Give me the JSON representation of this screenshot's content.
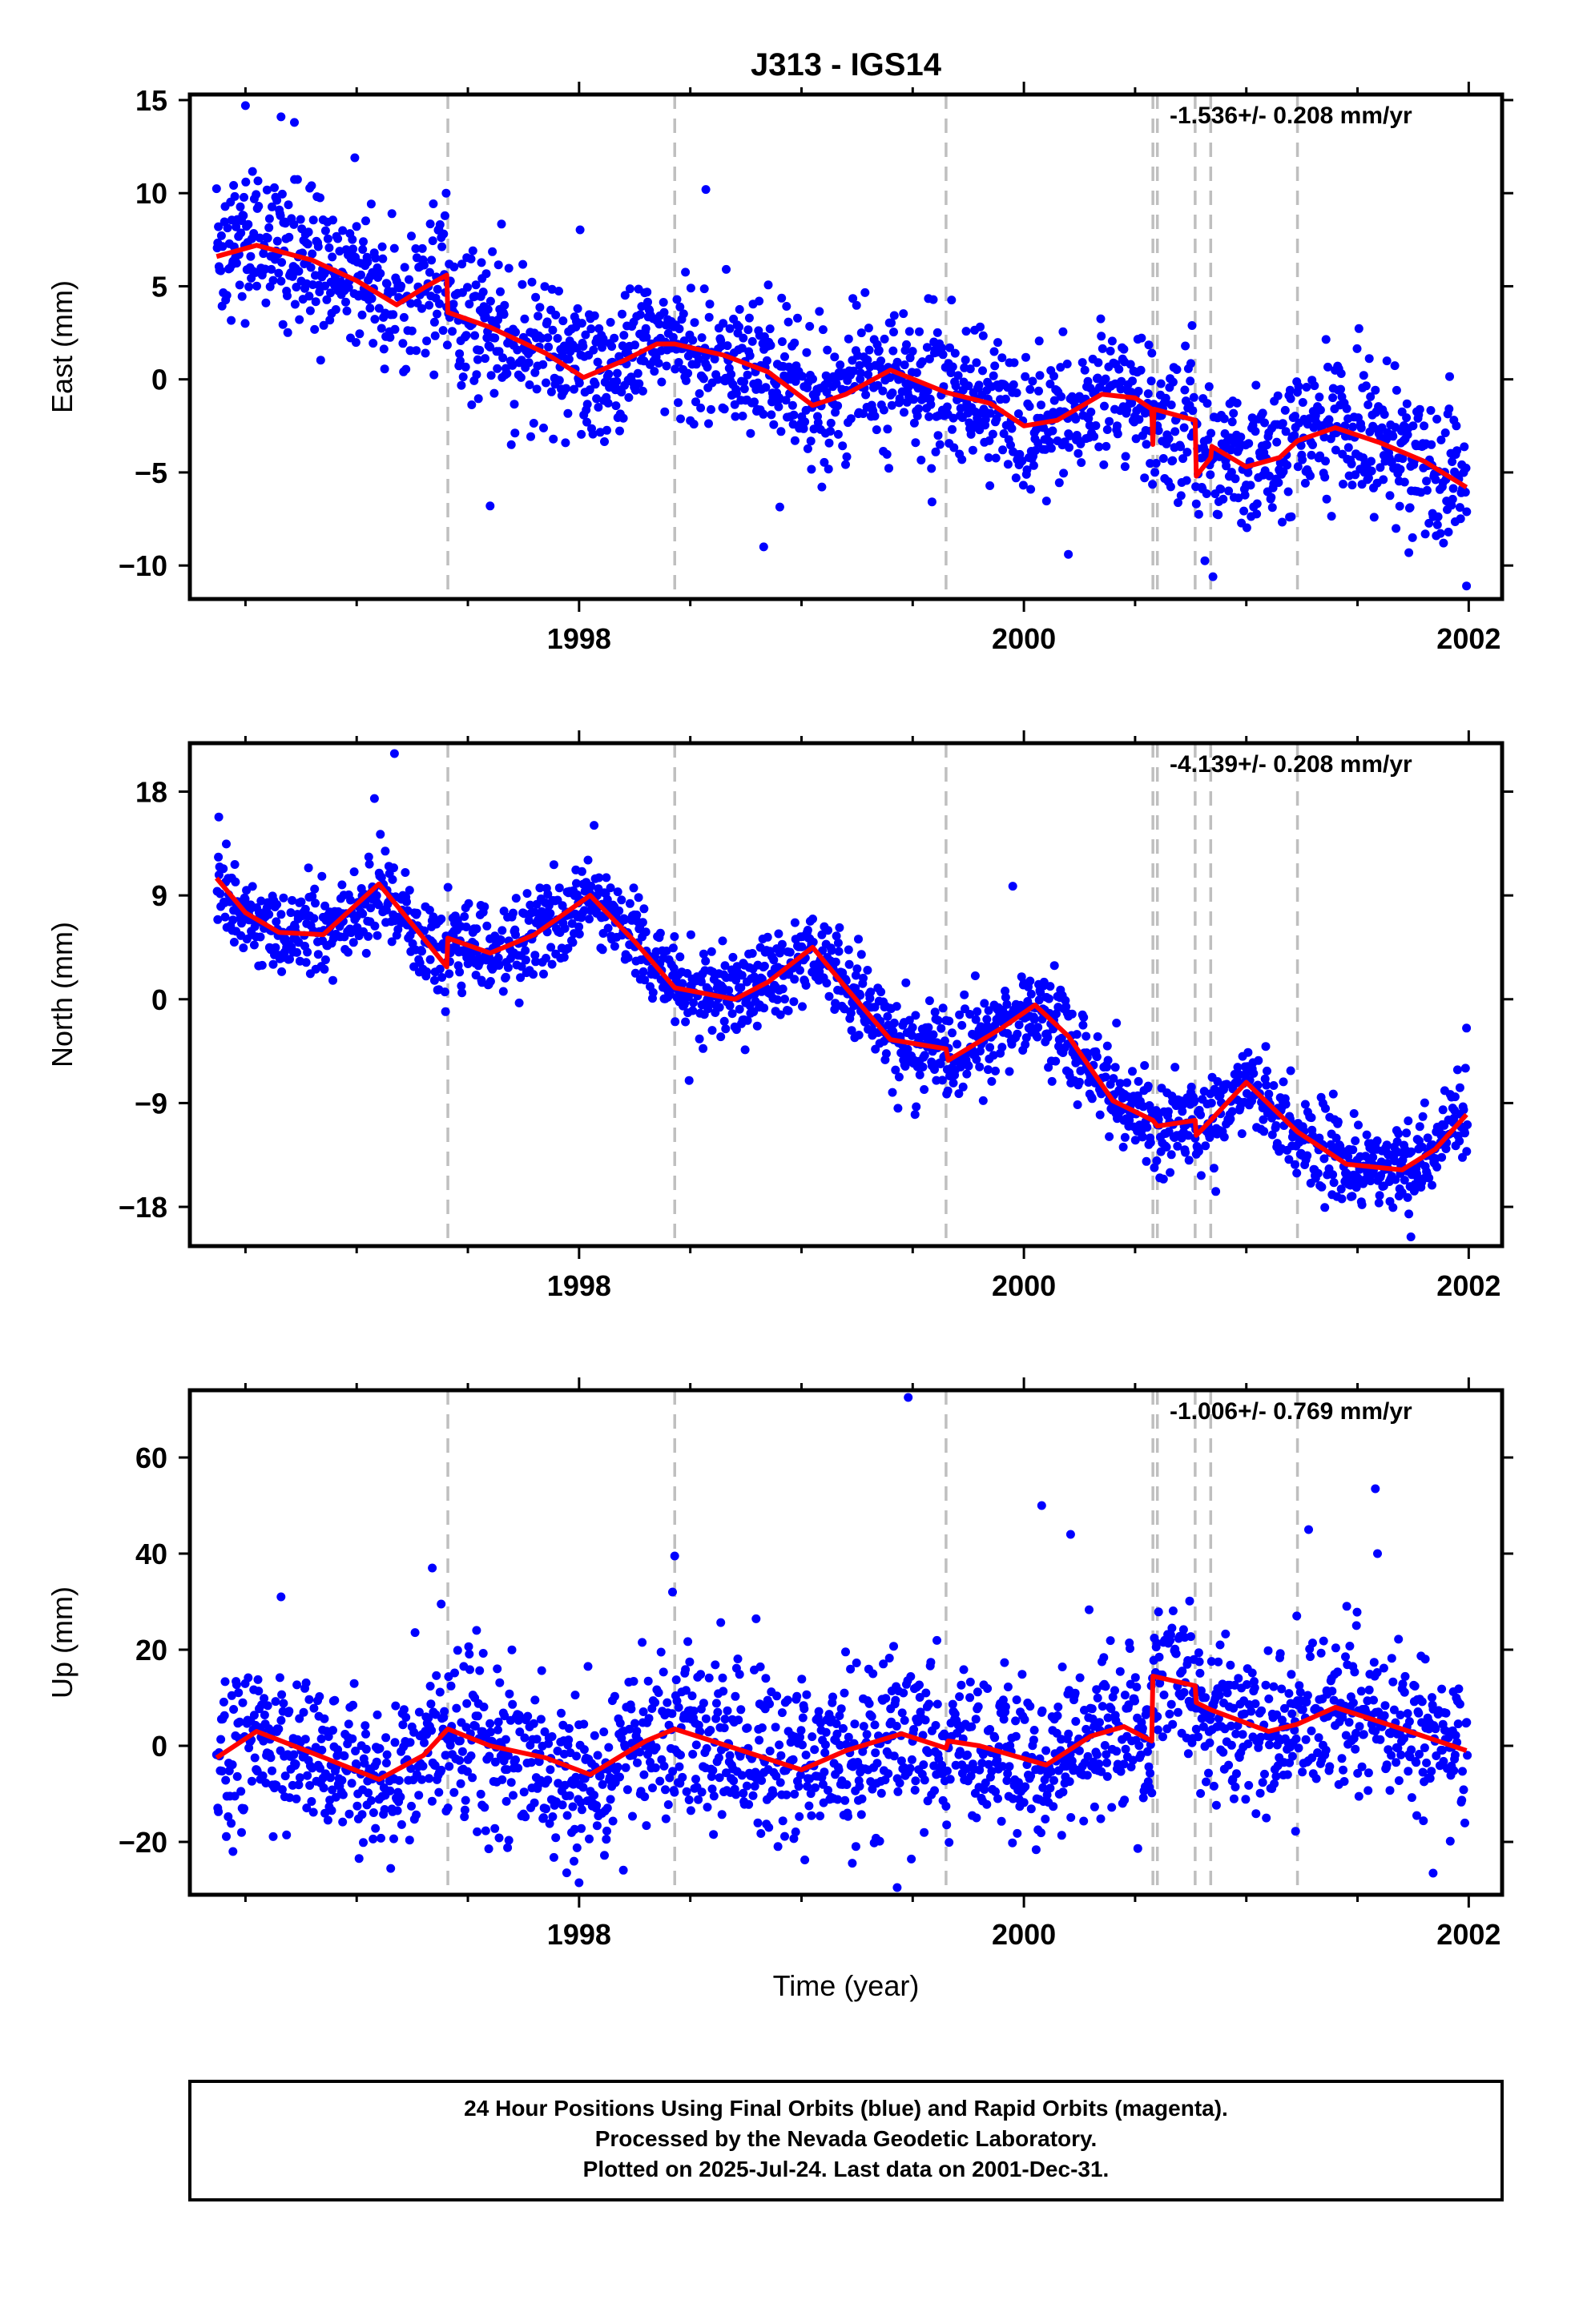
{
  "colors": {
    "points": "#0000ff",
    "fit": "#ff0000",
    "steps": "#bfbfbf",
    "frame": "#000000",
    "background": "#ffffff"
  },
  "chart_data": {
    "type": "scatter",
    "title": "J313 - IGS14",
    "xlabel": "Time (year)",
    "x_ticks": [
      1998,
      2000,
      2002
    ],
    "x_tick_labels": [
      "1998",
      "2000",
      "2002"
    ],
    "xlim": [
      1996.25,
      2002.15
    ],
    "series_style": {
      "points": "blue dots (24 hour positions, final orbits)",
      "fit": "red line (model fit)",
      "steps": "gray dashed vertical lines"
    },
    "step_epochs": [
      1997.41,
      1998.43,
      1999.65,
      2000.58,
      2000.6,
      2000.77,
      2000.84,
      2001.23
    ],
    "panels": [
      {
        "name": "east",
        "ylabel": "East (mm)",
        "ylim": [
          -11.8,
          15.3
        ],
        "y_ticks": [
          15,
          10,
          5,
          0,
          -5,
          -10
        ],
        "y_tick_labels": [
          "15",
          "10",
          "5",
          "0",
          "−5",
          "−10"
        ],
        "rate_text": "-1.536+/- 0.208 mm/yr",
        "trend": [
          {
            "x": 1996.37,
            "y": 6.6
          },
          {
            "x": 1996.55,
            "y": 7.2
          },
          {
            "x": 1996.8,
            "y": 6.4
          },
          {
            "x": 1997.0,
            "y": 5.3
          },
          {
            "x": 1997.18,
            "y": 4.0
          },
          {
            "x": 1997.3,
            "y": 4.9
          },
          {
            "x": 1997.405,
            "y": 5.6
          },
          {
            "x": 1997.41,
            "y": 3.6
          },
          {
            "x": 1997.6,
            "y": 2.8
          },
          {
            "x": 1997.85,
            "y": 1.4
          },
          {
            "x": 1998.02,
            "y": 0.1
          },
          {
            "x": 1998.2,
            "y": 1.0
          },
          {
            "x": 1998.35,
            "y": 1.9
          },
          {
            "x": 1998.43,
            "y": 1.9
          },
          {
            "x": 1998.65,
            "y": 1.3
          },
          {
            "x": 1998.85,
            "y": 0.4
          },
          {
            "x": 1999.05,
            "y": -1.4
          },
          {
            "x": 1999.2,
            "y": -0.8
          },
          {
            "x": 1999.4,
            "y": 0.5
          },
          {
            "x": 1999.65,
            "y": -0.7
          },
          {
            "x": 1999.85,
            "y": -1.3
          },
          {
            "x": 2000.0,
            "y": -2.5
          },
          {
            "x": 2000.15,
            "y": -2.2
          },
          {
            "x": 2000.35,
            "y": -0.8
          },
          {
            "x": 2000.5,
            "y": -1.0
          },
          {
            "x": 2000.575,
            "y": -1.6
          },
          {
            "x": 2000.58,
            "y": -3.5
          },
          {
            "x": 2000.585,
            "y": -1.6
          },
          {
            "x": 2000.77,
            "y": -2.2
          },
          {
            "x": 2000.775,
            "y": -5.2
          },
          {
            "x": 2000.84,
            "y": -4.2
          },
          {
            "x": 2000.845,
            "y": -3.6
          },
          {
            "x": 2001.0,
            "y": -4.7
          },
          {
            "x": 2001.15,
            "y": -4.2
          },
          {
            "x": 2001.23,
            "y": -3.3
          },
          {
            "x": 2001.4,
            "y": -2.6
          },
          {
            "x": 2001.6,
            "y": -3.4
          },
          {
            "x": 2001.8,
            "y": -4.4
          },
          {
            "x": 2001.99,
            "y": -5.8
          }
        ],
        "scatter_sigma": 1.9,
        "outliers": [
          {
            "x": 1996.5,
            "y": 14.7
          },
          {
            "x": 1996.66,
            "y": 14.1
          },
          {
            "x": 1996.72,
            "y": 13.8
          },
          {
            "x": 1998.57,
            "y": 10.2
          },
          {
            "x": 1997.6,
            "y": -6.8
          },
          {
            "x": 1998.83,
            "y": -9.0
          },
          {
            "x": 2000.2,
            "y": -9.4
          },
          {
            "x": 2000.85,
            "y": -10.6
          },
          {
            "x": 2001.99,
            "y": -11.1
          }
        ]
      },
      {
        "name": "north",
        "ylabel": "North (mm)",
        "ylim": [
          -21.4,
          22.2
        ],
        "y_ticks": [
          18,
          9,
          0,
          -9,
          -18
        ],
        "y_tick_labels": [
          "18",
          "9",
          "0",
          "−9",
          "−18"
        ],
        "rate_text": "-4.139+/- 0.208 mm/yr",
        "trend": [
          {
            "x": 1996.37,
            "y": 10.5
          },
          {
            "x": 1996.5,
            "y": 7.5
          },
          {
            "x": 1996.65,
            "y": 5.8
          },
          {
            "x": 1996.85,
            "y": 5.6
          },
          {
            "x": 1997.1,
            "y": 10.0
          },
          {
            "x": 1997.25,
            "y": 6.5
          },
          {
            "x": 1997.405,
            "y": 2.8
          },
          {
            "x": 1997.41,
            "y": 5.3
          },
          {
            "x": 1997.6,
            "y": 4.0
          },
          {
            "x": 1997.8,
            "y": 5.6
          },
          {
            "x": 1998.05,
            "y": 9.0
          },
          {
            "x": 1998.25,
            "y": 5.0
          },
          {
            "x": 1998.43,
            "y": 1.0
          },
          {
            "x": 1998.7,
            "y": 0.0
          },
          {
            "x": 1998.85,
            "y": 1.5
          },
          {
            "x": 1999.05,
            "y": 4.5
          },
          {
            "x": 1999.2,
            "y": 1.0
          },
          {
            "x": 1999.4,
            "y": -3.5
          },
          {
            "x": 1999.65,
            "y": -4.3
          },
          {
            "x": 1999.66,
            "y": -5.3
          },
          {
            "x": 1999.9,
            "y": -2.5
          },
          {
            "x": 2000.05,
            "y": -0.5
          },
          {
            "x": 2000.2,
            "y": -3.2
          },
          {
            "x": 2000.4,
            "y": -8.8
          },
          {
            "x": 2000.58,
            "y": -10.5
          },
          {
            "x": 2000.6,
            "y": -11.0
          },
          {
            "x": 2000.77,
            "y": -10.5
          },
          {
            "x": 2000.775,
            "y": -11.8
          },
          {
            "x": 2000.84,
            "y": -10.5
          },
          {
            "x": 2001.0,
            "y": -7.2
          },
          {
            "x": 2001.23,
            "y": -11.5
          },
          {
            "x": 2001.45,
            "y": -14.3
          },
          {
            "x": 2001.7,
            "y": -14.8
          },
          {
            "x": 2001.85,
            "y": -13.0
          },
          {
            "x": 2001.99,
            "y": -10.0
          }
        ],
        "scatter_sigma": 1.9,
        "outliers": [
          {
            "x": 1997.17,
            "y": 21.3
          },
          {
            "x": 1997.08,
            "y": 17.4
          },
          {
            "x": 1996.38,
            "y": 15.8
          },
          {
            "x": 1999.95,
            "y": 9.8
          },
          {
            "x": 2001.99,
            "y": -2.5
          },
          {
            "x": 2001.74,
            "y": -20.6
          }
        ]
      },
      {
        "name": "up",
        "ylabel": "Up (mm)",
        "ylim": [
          -31,
          74
        ],
        "y_ticks": [
          60,
          40,
          20,
          0,
          -20
        ],
        "y_tick_labels": [
          "60",
          "40",
          "20",
          "0",
          "−20"
        ],
        "rate_text": "-1.006+/- 0.769 mm/yr",
        "trend": [
          {
            "x": 1996.37,
            "y": -2.5
          },
          {
            "x": 1996.55,
            "y": 3.0
          },
          {
            "x": 1996.8,
            "y": -1.5
          },
          {
            "x": 1997.1,
            "y": -7.0
          },
          {
            "x": 1997.3,
            "y": -2.0
          },
          {
            "x": 1997.41,
            "y": 3.5
          },
          {
            "x": 1997.6,
            "y": 0.0
          },
          {
            "x": 1997.85,
            "y": -2.5
          },
          {
            "x": 1998.05,
            "y": -6.0
          },
          {
            "x": 1998.3,
            "y": 1.0
          },
          {
            "x": 1998.43,
            "y": 3.5
          },
          {
            "x": 1998.7,
            "y": -0.5
          },
          {
            "x": 1999.0,
            "y": -5.0
          },
          {
            "x": 1999.2,
            "y": -1.0
          },
          {
            "x": 1999.45,
            "y": 2.5
          },
          {
            "x": 1999.65,
            "y": -0.5
          },
          {
            "x": 1999.66,
            "y": 1.0
          },
          {
            "x": 1999.8,
            "y": 0.0
          },
          {
            "x": 2000.1,
            "y": -4.0
          },
          {
            "x": 2000.3,
            "y": 2.0
          },
          {
            "x": 2000.45,
            "y": 4.0
          },
          {
            "x": 2000.575,
            "y": 1.0
          },
          {
            "x": 2000.58,
            "y": 14.5
          },
          {
            "x": 2000.77,
            "y": 12.5
          },
          {
            "x": 2000.775,
            "y": 9.0
          },
          {
            "x": 2000.84,
            "y": 7.5
          },
          {
            "x": 2001.1,
            "y": 3.0
          },
          {
            "x": 2001.23,
            "y": 4.5
          },
          {
            "x": 2001.4,
            "y": 8.0
          },
          {
            "x": 2001.7,
            "y": 3.5
          },
          {
            "x": 2001.99,
            "y": -1.0
          }
        ],
        "scatter_sigma": 8.5,
        "outliers": [
          {
            "x": 1999.48,
            "y": 72.5
          },
          {
            "x": 2001.58,
            "y": 53.5
          },
          {
            "x": 2000.08,
            "y": 50.0
          },
          {
            "x": 2000.21,
            "y": 44.0
          },
          {
            "x": 2001.28,
            "y": 45.0
          },
          {
            "x": 2001.59,
            "y": 40.0
          },
          {
            "x": 1998.43,
            "y": 39.5
          },
          {
            "x": 1998.42,
            "y": 32.0
          },
          {
            "x": 1997.34,
            "y": 37.0
          },
          {
            "x": 1997.38,
            "y": 29.5
          },
          {
            "x": 1996.66,
            "y": 31.0
          },
          {
            "x": 1998.0,
            "y": -28.5
          },
          {
            "x": 1999.43,
            "y": -29.5
          },
          {
            "x": 2001.84,
            "y": -26.5
          }
        ]
      }
    ]
  },
  "footer": {
    "line1": "24 Hour Positions Using Final Orbits (blue) and Rapid Orbits (magenta).",
    "line2": "Processed by the Nevada Geodetic Laboratory.",
    "line3": "Plotted on 2025-Jul-24. Last data on 2001-Dec-31."
  }
}
